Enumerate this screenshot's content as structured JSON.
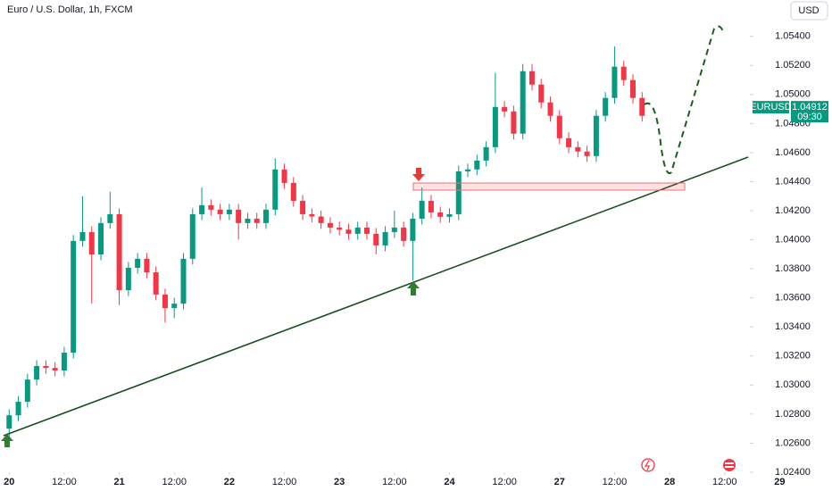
{
  "chart_data": {
    "type": "candlestick",
    "title": "Euro / U.S. Dollar, 1h, FXCM",
    "currency": "USD",
    "symbol": "EURUSD",
    "last_price": 1.04912,
    "countdown": "09:30",
    "up_color": "#089981",
    "down_color": "#f23645",
    "grid": false,
    "xlim": [
      -2,
      161.5
    ],
    "ylim": [
      1.024,
      1.0565
    ],
    "xticks": [
      {
        "value": 0,
        "label": "20"
      },
      {
        "value": 12,
        "label": "12:00"
      },
      {
        "value": 24,
        "label": "21"
      },
      {
        "value": 36,
        "label": "12:00"
      },
      {
        "value": 48,
        "label": "22"
      },
      {
        "value": 60,
        "label": "12:00"
      },
      {
        "value": 72,
        "label": "23"
      },
      {
        "value": 84,
        "label": "12:00"
      },
      {
        "value": 96,
        "label": "24"
      },
      {
        "value": 108,
        "label": "12:00"
      },
      {
        "value": 120,
        "label": "27"
      },
      {
        "value": 132,
        "label": "12:00"
      },
      {
        "value": 144,
        "label": "28"
      },
      {
        "value": 156,
        "label": "12:00"
      },
      {
        "value": 168,
        "label": "29"
      }
    ],
    "yticks": [
      {
        "value": 1.054,
        "label": "1.05400"
      },
      {
        "value": 1.052,
        "label": "1.05200"
      },
      {
        "value": 1.05,
        "label": "1.05000"
      },
      {
        "value": 1.048,
        "label": "1.04800"
      },
      {
        "value": 1.046,
        "label": "1.04600"
      },
      {
        "value": 1.044,
        "label": "1.04400"
      },
      {
        "value": 1.042,
        "label": "1.04200"
      },
      {
        "value": 1.04,
        "label": "1.04000"
      },
      {
        "value": 1.038,
        "label": "1.03800"
      },
      {
        "value": 1.036,
        "label": "1.03600"
      },
      {
        "value": 1.034,
        "label": "1.03400"
      },
      {
        "value": 1.032,
        "label": "1.03200"
      },
      {
        "value": 1.03,
        "label": "1.03000"
      },
      {
        "value": 1.028,
        "label": "1.02800"
      },
      {
        "value": 1.026,
        "label": "1.02600"
      },
      {
        "value": 1.024,
        "label": "1.02400"
      }
    ],
    "x": [
      0,
      2,
      4,
      6,
      8,
      10,
      12,
      14,
      16,
      18,
      20,
      22,
      24,
      26,
      28,
      30,
      32,
      34,
      36,
      38,
      40,
      42,
      44,
      46,
      48,
      50,
      52,
      54,
      56,
      58,
      60,
      62,
      64,
      66,
      68,
      70,
      72,
      74,
      76,
      78,
      80,
      82,
      84,
      86,
      88,
      90,
      92,
      94,
      96,
      98,
      100,
      102,
      104,
      106,
      108,
      110,
      112,
      114,
      116,
      118,
      120,
      122,
      124,
      126,
      128,
      130,
      132,
      134,
      136,
      138
    ],
    "open": [
      1.027,
      1.02792,
      1.02885,
      1.03038,
      1.03131,
      1.03118,
      1.031,
      1.03223,
      1.03992,
      1.04053,
      1.03899,
      1.04115,
      1.04176,
      1.03653,
      1.03807,
      1.03869,
      1.03776,
      1.03623,
      1.0353,
      1.0356,
      1.03869,
      1.04176,
      1.04238,
      1.04207,
      1.04176,
      1.04207,
      1.04115,
      1.04145,
      1.04115,
      1.04207,
      1.04484,
      1.04391,
      1.04268,
      1.04176,
      1.0416,
      1.04115,
      1.04084,
      1.0407,
      1.04041,
      1.04084,
      1.04041,
      1.03961,
      1.04053,
      1.04084,
      1.03992,
      1.04145,
      1.04268,
      1.04188,
      1.04158,
      1.04176,
      1.04471,
      1.04484,
      1.04545,
      1.04637,
      1.04914,
      1.04883,
      1.0473,
      1.0516,
      1.05068,
      1.04945,
      1.04853,
      1.04699,
      1.04637,
      1.04607,
      1.04576,
      1.04853,
      1.04976,
      1.05191,
      1.05099,
      1.04976
    ],
    "high": [
      1.02832,
      1.02925,
      1.03078,
      1.03171,
      1.03171,
      1.03158,
      1.03263,
      1.04032,
      1.043,
      1.04093,
      1.04155,
      1.0433,
      1.04216,
      1.03847,
      1.03909,
      1.03909,
      1.03816,
      1.03663,
      1.036,
      1.03909,
      1.04216,
      1.0436,
      1.04278,
      1.04247,
      1.04247,
      1.04247,
      1.04185,
      1.04185,
      1.04247,
      1.0456,
      1.04524,
      1.04431,
      1.04308,
      1.04216,
      1.042,
      1.04155,
      1.04124,
      1.0411,
      1.04124,
      1.04124,
      1.04081,
      1.04093,
      1.042,
      1.04124,
      1.04185,
      1.0436,
      1.04308,
      1.04228,
      1.04216,
      1.04511,
      1.04524,
      1.04585,
      1.04677,
      1.0515,
      1.04954,
      1.04923,
      1.0521,
      1.0521,
      1.05108,
      1.04985,
      1.04893,
      1.04739,
      1.04677,
      1.04647,
      1.04893,
      1.05016,
      1.0533,
      1.05231,
      1.05139,
      1.05016
    ],
    "low": [
      1.0262,
      1.02752,
      1.02845,
      1.02998,
      1.03078,
      1.0306,
      1.0306,
      1.03183,
      1.03952,
      1.0356,
      1.03859,
      1.04075,
      1.0355,
      1.03613,
      1.03767,
      1.03736,
      1.03583,
      1.0343,
      1.0346,
      1.0352,
      1.03829,
      1.04136,
      1.04167,
      1.04136,
      1.04136,
      1.04,
      1.04075,
      1.04075,
      1.04075,
      1.04167,
      1.04351,
      1.04228,
      1.04136,
      1.0412,
      1.04075,
      1.04044,
      1.0403,
      1.04001,
      1.04001,
      1.04001,
      1.039,
      1.03921,
      1.04013,
      1.03952,
      1.0372,
      1.04105,
      1.04148,
      1.04118,
      1.04118,
      1.04136,
      1.04431,
      1.04444,
      1.04505,
      1.04597,
      1.04843,
      1.0469,
      1.0469,
      1.05028,
      1.04905,
      1.04813,
      1.04659,
      1.04597,
      1.04567,
      1.04536,
      1.04536,
      1.04813,
      1.04936,
      1.05059,
      1.04936,
      1.04813
    ],
    "close": [
      1.02792,
      1.02885,
      1.03038,
      1.03131,
      1.03118,
      1.031,
      1.03223,
      1.03992,
      1.04053,
      1.03899,
      1.04115,
      1.04176,
      1.03653,
      1.03807,
      1.03869,
      1.03776,
      1.03623,
      1.0353,
      1.0356,
      1.03869,
      1.04176,
      1.04238,
      1.04207,
      1.04176,
      1.04207,
      1.04115,
      1.04145,
      1.04115,
      1.04207,
      1.04484,
      1.04391,
      1.04268,
      1.04176,
      1.0416,
      1.04115,
      1.04084,
      1.0407,
      1.04041,
      1.04084,
      1.04041,
      1.03961,
      1.04053,
      1.04084,
      1.03992,
      1.04145,
      1.04268,
      1.04188,
      1.04158,
      1.04176,
      1.04471,
      1.04484,
      1.04545,
      1.04637,
      1.04914,
      1.04883,
      1.0473,
      1.0516,
      1.05068,
      1.04945,
      1.04853,
      1.04699,
      1.04637,
      1.04607,
      1.04576,
      1.04853,
      1.04976,
      1.05191,
      1.05099,
      1.04976,
      1.04853
    ]
  }
}
